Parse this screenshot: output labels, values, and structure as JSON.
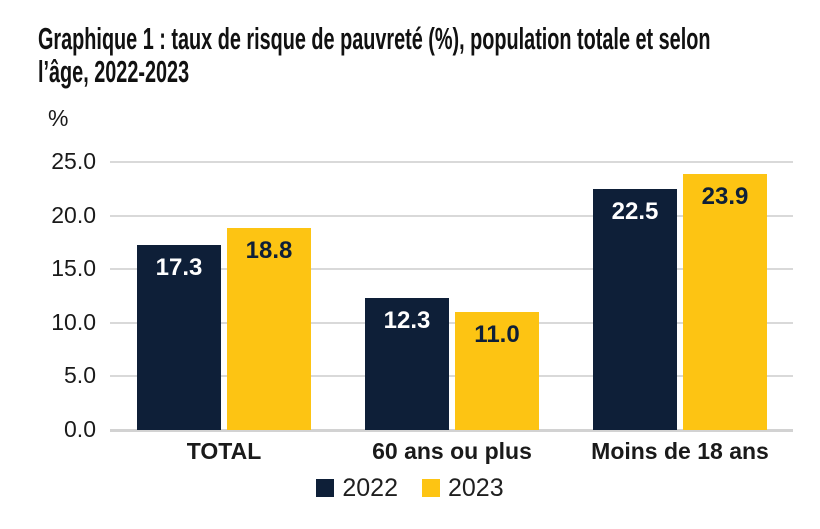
{
  "header": {
    "title_line1": "Graphique 1 : taux de risque de pauvreté (%), population totale et selon",
    "title_line2": "l’âge, 2022-2023"
  },
  "chart_data": {
    "type": "bar",
    "title": "Graphique 1 : taux de risque de pauvreté (%), population totale et selon l’âge, 2022-2023",
    "unit_label": "%",
    "categories": [
      "TOTAL",
      "60 ans ou plus",
      "Moins de 18 ans"
    ],
    "series": [
      {
        "name": "2022",
        "color": "#0E1F38",
        "label_color": "#FFFFFF",
        "values": [
          17.3,
          12.3,
          22.5
        ]
      },
      {
        "name": "2023",
        "color": "#FDC413",
        "label_color": "#0E1F38",
        "values": [
          18.8,
          11.0,
          23.9
        ]
      }
    ],
    "xlabel": "",
    "ylabel": "%",
    "ylim": [
      0,
      25
    ],
    "yticks": [
      0.0,
      5.0,
      10.0,
      15.0,
      20.0,
      25.0
    ],
    "ytick_labels": [
      "0.0",
      "5.0",
      "10.0",
      "15.0",
      "20.0",
      "25.0"
    ],
    "grid": true,
    "grid_color": "#D9D9D9",
    "baseline_color": "#D2D2D2",
    "value_labels": true,
    "legend_position": "bottom"
  }
}
